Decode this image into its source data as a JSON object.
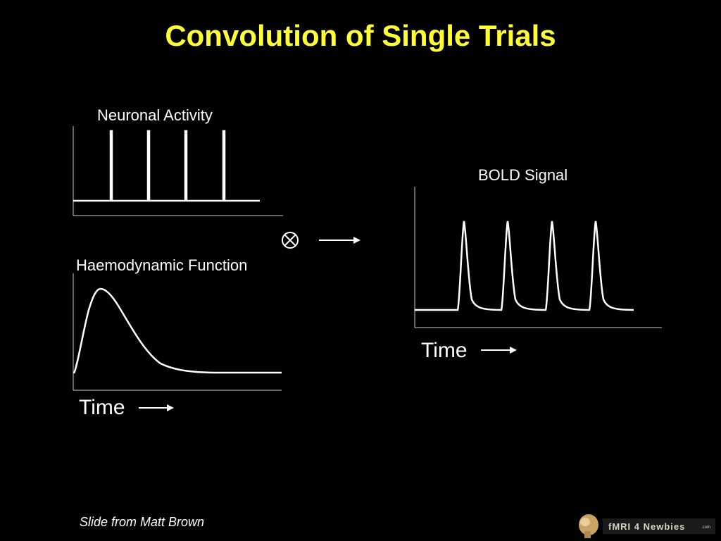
{
  "title": "Convolution of Single Trials",
  "panels": {
    "neuronal": {
      "label": "Neuronal Activity"
    },
    "haemodynamic": {
      "label": "Haemodynamic Function"
    },
    "bold": {
      "label": "BOLD Signal"
    }
  },
  "time_labels": {
    "left": "Time",
    "right": "Time"
  },
  "operator": {
    "symbol": "convolution",
    "icon": "circled-times-icon"
  },
  "credit": "Slide from Matt Brown",
  "logo": {
    "text": "fMRI 4 Newbies",
    "suffix": ".com"
  },
  "colors": {
    "background": "#000000",
    "title": "#ffff33",
    "text": "#ffffff",
    "lines": "#ffffff",
    "axes": "#cccccc"
  }
}
